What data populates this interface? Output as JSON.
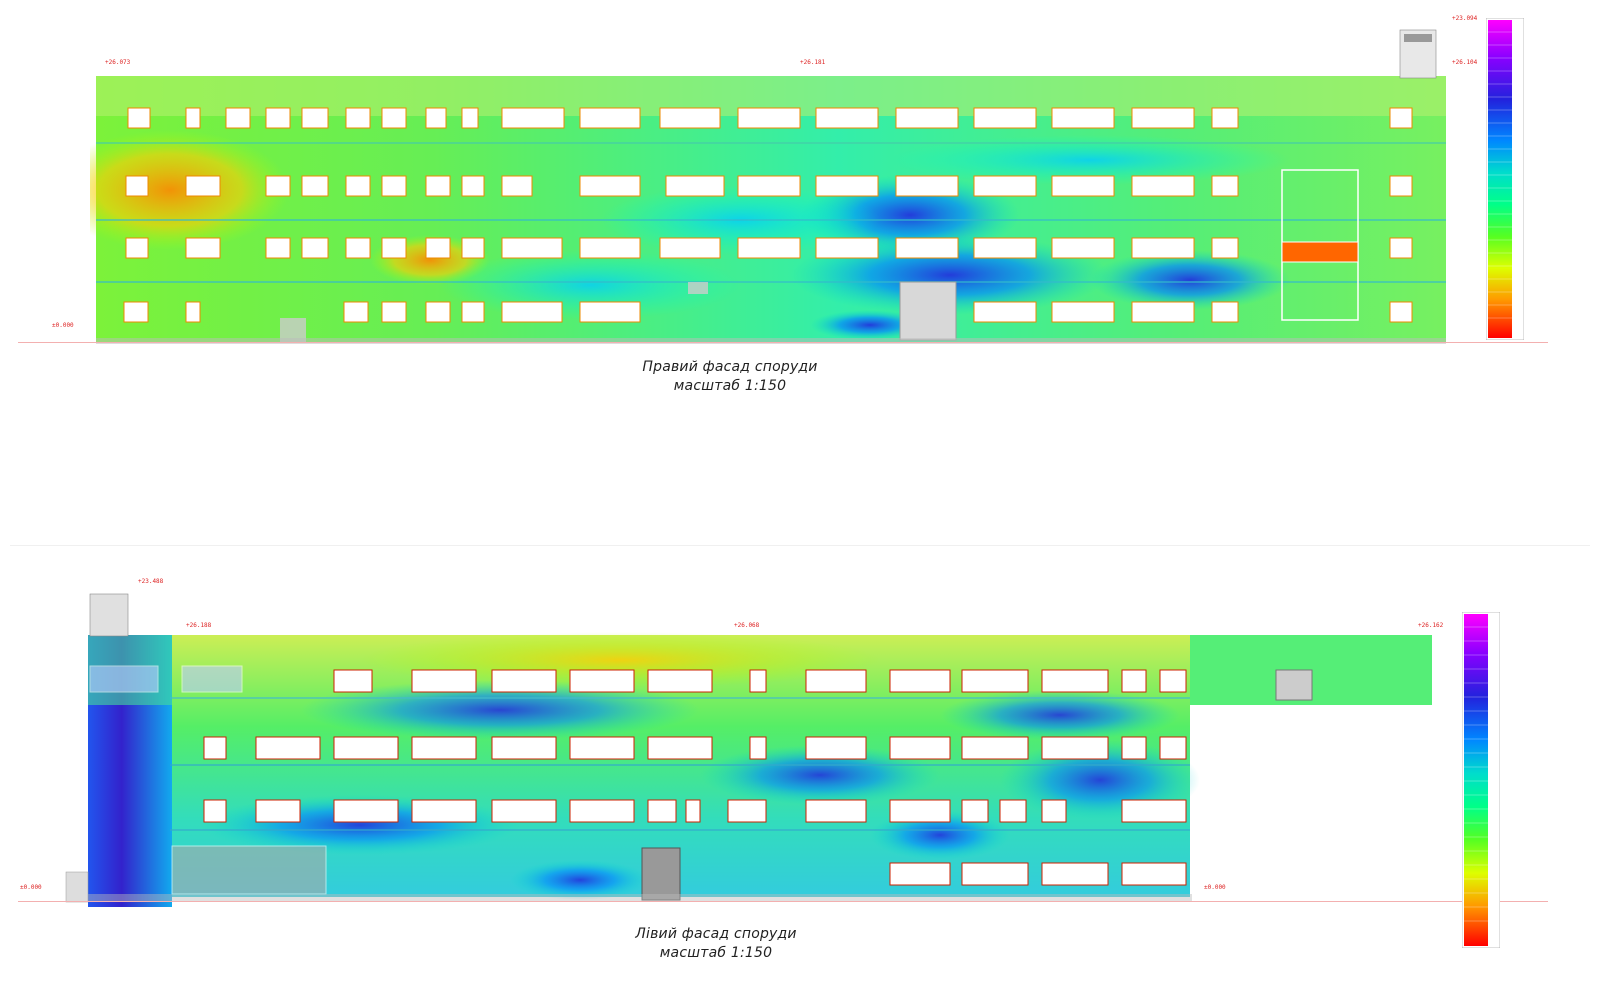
{
  "facades": [
    {
      "id": "right",
      "caption_line1": "Правий фасад споруди",
      "caption_line2": "масштаб 1:150",
      "elevations": [
        "+26.073",
        "+26.181",
        "+23.094",
        "+26.104",
        "±0.000"
      ]
    },
    {
      "id": "left",
      "caption_line1": "Лівий фасад споруди",
      "caption_line2": "масштаб 1:150",
      "elevations": [
        "+23.488",
        "+26.188",
        "+26.068",
        "+26.162",
        "±0.000",
        "±0.000"
      ]
    }
  ],
  "colors": {
    "scale": [
      "#ff0000",
      "#ff6600",
      "#ffaa00",
      "#ffee00",
      "#aaff00",
      "#33ff33",
      "#00ffaa",
      "#00ccff",
      "#0066ff",
      "#2222cc",
      "#8800ff",
      "#ff00ff"
    ],
    "elevation_mark": "#d22222",
    "window_frame": "#cc2200"
  }
}
